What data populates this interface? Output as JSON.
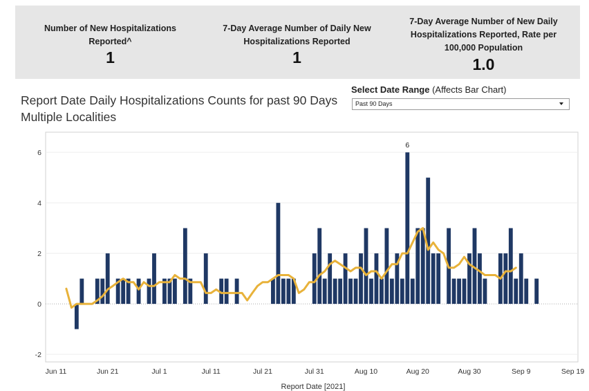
{
  "kpis": [
    {
      "label": "Number of New Hospitalizations Reported^",
      "value": "1"
    },
    {
      "label": "7-Day Average Number of Daily New Hospitalizations Reported",
      "value": "1"
    },
    {
      "label": "7-Day Average Number of New Daily Hospitalizations Reported, Rate per 100,000 Population",
      "value": "1.0"
    }
  ],
  "chart_title_line1": "Report Date Daily Hospitalizations Counts for past 90 Days",
  "chart_title_line2": "Multiple Localities",
  "date_range": {
    "label_bold": "Select Date Range",
    "label_note": "(Affects Bar Chart)",
    "selected": "Past 90 Days"
  },
  "colors": {
    "bar": "#1f3864",
    "line": "#e8b23a",
    "kpi_band": "#e6e6e6"
  },
  "chart_data": {
    "type": "bar",
    "xlabel": "Report Date [2021]",
    "ylabel": "",
    "x_start": "2021-06-13",
    "x_range": [
      "2021-06-09",
      "2021-09-20"
    ],
    "ylim": [
      -2.3,
      6.8
    ],
    "yticks": [
      -2,
      0,
      2,
      4,
      6
    ],
    "xticks": [
      {
        "date": "2021-06-11",
        "label": "Jun 11"
      },
      {
        "date": "2021-06-21",
        "label": "Jun 21"
      },
      {
        "date": "2021-07-01",
        "label": "Jul 1"
      },
      {
        "date": "2021-07-11",
        "label": "Jul 11"
      },
      {
        "date": "2021-07-21",
        "label": "Jul 21"
      },
      {
        "date": "2021-07-31",
        "label": "Jul 31"
      },
      {
        "date": "2021-08-10",
        "label": "Aug 10"
      },
      {
        "date": "2021-08-20",
        "label": "Aug 20"
      },
      {
        "date": "2021-08-30",
        "label": "Aug 30"
      },
      {
        "date": "2021-09-09",
        "label": "Sep 9"
      },
      {
        "date": "2021-09-19",
        "label": "Sep 19"
      }
    ],
    "series": [
      {
        "name": "Daily Hospitalizations",
        "kind": "bar",
        "values": [
          0,
          0,
          -1,
          1,
          0,
          0,
          1,
          1,
          2,
          0,
          1,
          1,
          1,
          0,
          1,
          0,
          1,
          2,
          0,
          1,
          1,
          1,
          0,
          3,
          1,
          0,
          0,
          2,
          0,
          0,
          1,
          1,
          0,
          1,
          0,
          0,
          0,
          0,
          0,
          0,
          1,
          4,
          1,
          1,
          1,
          0,
          0,
          0,
          2,
          3,
          1,
          2,
          1,
          1,
          2,
          1,
          1,
          2,
          3,
          1,
          2,
          1,
          3,
          1,
          2,
          1,
          6,
          1,
          3,
          3,
          5,
          2,
          2,
          0,
          3,
          1,
          1,
          1,
          2,
          3,
          2,
          1,
          0,
          0,
          2,
          2,
          3,
          1,
          2,
          1,
          0,
          1
        ],
        "peak_label": "6"
      },
      {
        "name": "7-Day Average",
        "kind": "line",
        "values": [
          0.6,
          -0.15,
          0.0,
          0.0,
          0.0,
          0.0,
          0.14,
          0.3,
          0.57,
          0.71,
          0.86,
          1.0,
          0.86,
          0.86,
          0.57,
          0.86,
          0.71,
          0.71,
          0.86,
          0.86,
          0.86,
          1.14,
          1.0,
          1.0,
          0.86,
          0.86,
          0.86,
          0.43,
          0.43,
          0.57,
          0.43,
          0.43,
          0.43,
          0.43,
          0.43,
          0.14,
          0.43,
          0.71,
          0.86,
          0.86,
          1.0,
          1.14,
          1.14,
          1.14,
          1.0,
          0.43,
          0.57,
          0.86,
          0.86,
          1.14,
          1.29,
          1.57,
          1.71,
          1.57,
          1.43,
          1.29,
          1.43,
          1.43,
          1.14,
          1.29,
          1.29,
          1.0,
          1.29,
          1.57,
          1.57,
          2.0,
          2.0,
          2.43,
          2.86,
          3.0,
          2.14,
          2.43,
          2.14,
          2.0,
          1.43,
          1.43,
          1.57,
          1.86,
          1.57,
          1.43,
          1.29,
          1.14,
          1.14,
          1.14,
          1.0,
          1.29,
          1.29,
          1.43
        ]
      }
    ]
  }
}
